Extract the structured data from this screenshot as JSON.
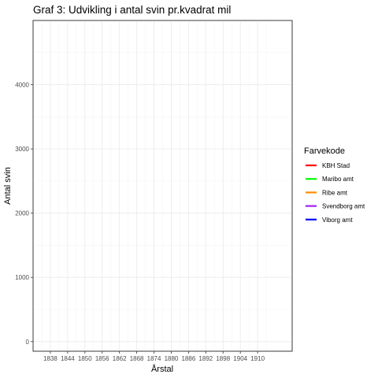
{
  "chart_data": {
    "type": "line",
    "title": "Graf 3: Udvikling i antal svin pr.kvadrat mil",
    "xlabel": "Årstal",
    "ylabel": "Antal svin",
    "xlim": [
      1832,
      1922
    ],
    "ylim": [
      -150,
      5000
    ],
    "x_ticks": [
      1838,
      1844,
      1850,
      1856,
      1862,
      1868,
      1874,
      1880,
      1886,
      1892,
      1898,
      1904,
      1910
    ],
    "y_ticks": [
      0,
      1000,
      2000,
      3000,
      4000
    ],
    "grid": true,
    "legend": {
      "title": "Farvekode",
      "position": "right",
      "entries": [
        {
          "label": "KBH Stad",
          "color": "#ff0000"
        },
        {
          "label": "Maribo amt",
          "color": "#00ff00"
        },
        {
          "label": "Ribe amt",
          "color": "#ff8c00"
        },
        {
          "label": "Svendborg amt",
          "color": "#a020f0"
        },
        {
          "label": "Viborg amt",
          "color": "#0000ff"
        }
      ]
    },
    "series": []
  }
}
